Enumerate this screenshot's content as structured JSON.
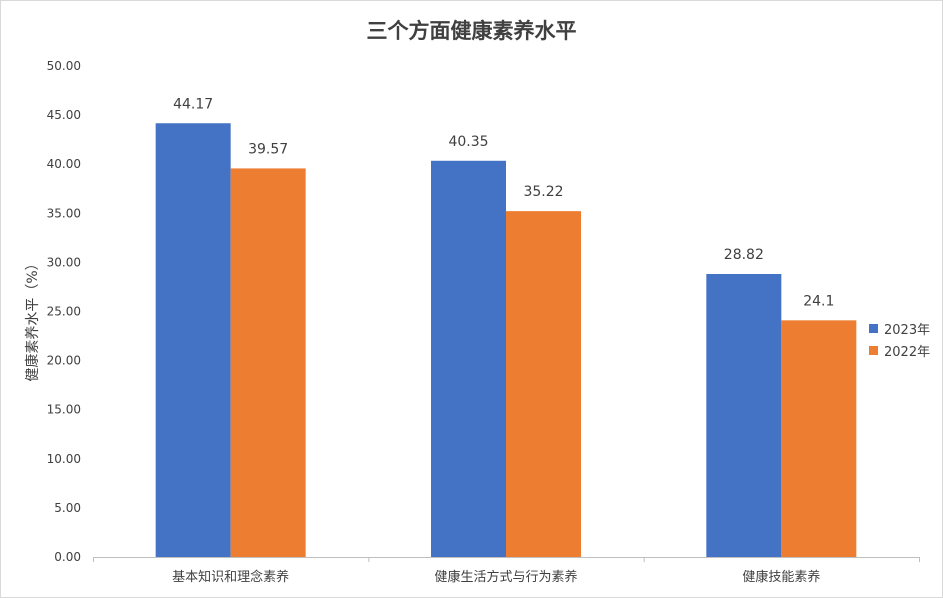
{
  "chart_data": {
    "type": "bar",
    "title": "三个方面健康素养水平",
    "ylabel": "健康素养水平（%）",
    "xlabel": "",
    "ylim": [
      0,
      50
    ],
    "ytick_step": 5,
    "ytick_labels": [
      "0.00",
      "5.00",
      "10.00",
      "15.00",
      "20.00",
      "25.00",
      "30.00",
      "35.00",
      "40.00",
      "45.00",
      "50.00"
    ],
    "categories": [
      "基本知识和理念素养",
      "健康生活方式与行为素养",
      "健康技能素养"
    ],
    "series": [
      {
        "name": "2023年",
        "values": [
          44.17,
          40.35,
          28.82
        ],
        "labels": [
          "44.17",
          "40.35",
          "28.82"
        ],
        "color": "#4472c4"
      },
      {
        "name": "2022年",
        "values": [
          39.57,
          35.22,
          24.1
        ],
        "labels": [
          "39.57",
          "35.22",
          "24.1"
        ],
        "color": "#ed7d31"
      }
    ],
    "grid": false,
    "legend_position": "right"
  }
}
